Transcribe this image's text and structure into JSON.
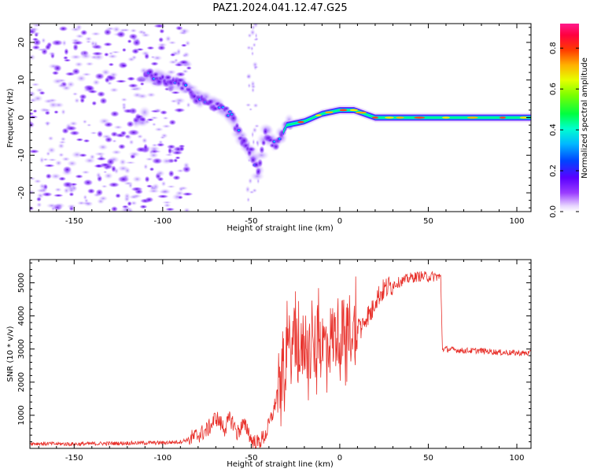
{
  "title": "PAZ1.2024.041.12.47.G25",
  "chart_data": [
    {
      "type": "heatmap",
      "xlabel": "Height of straight line (km)",
      "ylabel": "Frequency (Hz)",
      "xlim": [
        -175,
        108
      ],
      "ylim": [
        -25,
        25
      ],
      "xticks": [
        -150,
        -100,
        -50,
        0,
        50,
        100
      ],
      "yticks": [
        -20,
        -10,
        0,
        10,
        20
      ],
      "colorbar": {
        "label": "Normalized spectral amplitude",
        "range": [
          0,
          0.92
        ],
        "ticks": [
          "0.0",
          "0.2",
          "0.4",
          "0.6",
          "0.8"
        ],
        "colormap": "rainbow (white-violet-blue-cyan-green-yellow-red-magenta)"
      },
      "ridge": [
        {
          "x": -110,
          "f": 12
        },
        {
          "x": -100,
          "f": 10
        },
        {
          "x": -90,
          "f": 9
        },
        {
          "x": -80,
          "f": 5
        },
        {
          "x": -75,
          "f": 4
        },
        {
          "x": -68,
          "f": 3
        },
        {
          "x": -62,
          "f": 1
        },
        {
          "x": -58,
          "f": -3
        },
        {
          "x": -55,
          "f": -6
        },
        {
          "x": -50,
          "f": -9
        },
        {
          "x": -46,
          "f": -15
        },
        {
          "x": -42,
          "f": -4
        },
        {
          "x": -36,
          "f": -8
        },
        {
          "x": -30,
          "f": -2
        },
        {
          "x": -20,
          "f": -1
        },
        {
          "x": -10,
          "f": 1
        },
        {
          "x": 0,
          "f": 2
        },
        {
          "x": 8,
          "f": 2
        },
        {
          "x": 20,
          "f": 0
        },
        {
          "x": 50,
          "f": 0
        },
        {
          "x": 108,
          "f": 0
        }
      ]
    },
    {
      "type": "line",
      "xlabel": "Height of straight line (km)",
      "ylabel": "SNR (10 * v/v)",
      "xlim": [
        -175,
        108
      ],
      "ylim": [
        0,
        5700
      ],
      "xticks": [
        -150,
        -100,
        -50,
        0,
        50,
        100
      ],
      "yticks": [
        1000,
        2000,
        3000,
        4000,
        5000
      ],
      "series": [
        {
          "color": "#e8302a",
          "x": [
            -175,
            -150,
            -120,
            -100,
            -90,
            -85,
            -80,
            -75,
            -72,
            -70,
            -68,
            -65,
            -62,
            -60,
            -58,
            -55,
            -52,
            -50,
            -47,
            -45,
            -42,
            -40,
            -37,
            -35,
            -32,
            -30,
            -28,
            -25,
            -22,
            -20,
            -18,
            -15,
            -12,
            -10,
            -8,
            -5,
            -3,
            0,
            3,
            5,
            8,
            10,
            12,
            15,
            18,
            20,
            25,
            30,
            35,
            40,
            45,
            50,
            55,
            57,
            58,
            60,
            70,
            80,
            90,
            100,
            108
          ],
          "y": [
            150,
            130,
            160,
            170,
            200,
            280,
            400,
            550,
            750,
            950,
            800,
            600,
            900,
            750,
            450,
            700,
            600,
            250,
            150,
            220,
            400,
            700,
            1200,
            1800,
            2500,
            2900,
            3000,
            3200,
            2700,
            3300,
            3000,
            2900,
            3300,
            3100,
            3200,
            3300,
            3400,
            3600,
            3400,
            3700,
            3500,
            3800,
            3600,
            4000,
            4100,
            4500,
            4800,
            4950,
            5050,
            5150,
            5200,
            5180,
            5200,
            5150,
            3000,
            3000,
            2950,
            2950,
            2900,
            2880,
            2870
          ]
        }
      ]
    }
  ]
}
